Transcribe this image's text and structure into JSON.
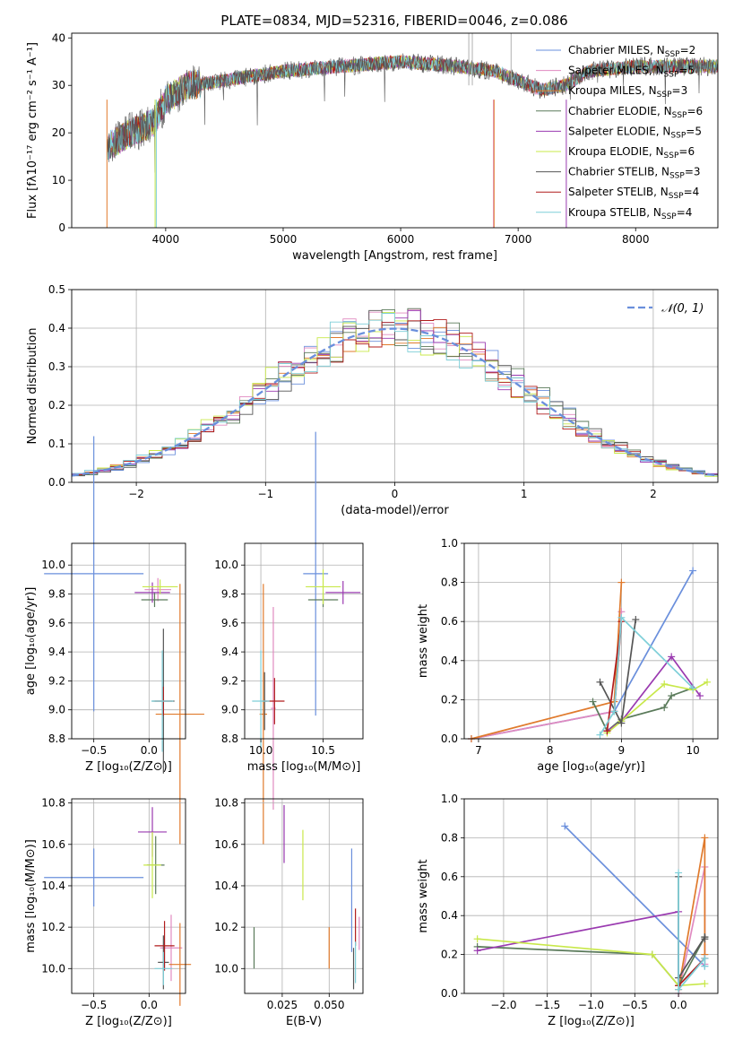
{
  "colors": {
    "series": [
      "#6a8fdc",
      "#e08ac0",
      "#e07a2c",
      "#5a7a5a",
      "#9a3ab0",
      "#c8e84a",
      "#555555",
      "#b01c1c",
      "#7ecfd8"
    ]
  },
  "chart_data": [
    {
      "type": "line",
      "title": "PLATE=0834, MJD=52316, FIBERID=0046, z=0.086",
      "xlabel": "wavelength [Angstrom, rest frame]",
      "ylabel": "Flux [fλ10⁻¹⁷ erg cm⁻² s⁻¹ A⁻¹]",
      "xlim": [
        3200,
        8700
      ],
      "ylim": [
        0,
        41
      ],
      "xticks": [
        4000,
        5000,
        6000,
        7000,
        8000
      ],
      "yticks": [
        0,
        10,
        20,
        30,
        40
      ],
      "grid": false,
      "legend_position": "top-right",
      "legend": [
        "Chabrier MILES, N_SSP=2",
        "Salpeter MILES, N_SSP=5",
        "Kroupa MILES, N_SSP=3",
        "Chabrier ELODIE, N_SSP=6",
        "Salpeter ELODIE, N_SSP=5",
        "Kroupa ELODIE, N_SSP=6",
        "Chabrier STELIB, N_SSP=3",
        "Salpeter STELIB, N_SSP=4",
        "Kroupa STELIB, N_SSP=4"
      ],
      "legend_display": [
        [
          "Chabrier MILES, N",
          "SSP",
          "=2"
        ],
        [
          "Salpeter MILES, N",
          "SSP",
          "=5"
        ],
        [
          "Kroupa MILES, N",
          "SSP",
          "=3"
        ],
        [
          "Chabrier ELODIE, N",
          "SSP",
          "=6"
        ],
        [
          "Salpeter ELODIE, N",
          "SSP",
          "=5"
        ],
        [
          "Kroupa ELODIE, N",
          "SSP",
          "=6"
        ],
        [
          "Chabrier STELIB, N",
          "SSP",
          "=3"
        ],
        [
          "Salpeter STELIB, N",
          "SSP",
          "=4"
        ],
        [
          "Kroupa STELIB, N",
          "SSP",
          "=4"
        ]
      ],
      "spectrum_envelope": {
        "x": [
          3500,
          3700,
          3900,
          4000,
          4200,
          4500,
          5000,
          5500,
          6000,
          6500,
          6800,
          7000,
          7200,
          7400,
          7600,
          8000,
          8400,
          8700
        ],
        "y": [
          17,
          20,
          22,
          27,
          30,
          31,
          33,
          34,
          35,
          34,
          33,
          31,
          29,
          30,
          33,
          34,
          34,
          34
        ]
      }
    },
    {
      "type": "step",
      "xlabel": "(data-model)/error",
      "ylabel": "Normed distribution",
      "xlim": [
        -2.5,
        2.5
      ],
      "ylim": [
        0,
        0.5
      ],
      "xticks": [
        -2,
        -1,
        0,
        1,
        2
      ],
      "yticks": [
        0.0,
        0.1,
        0.2,
        0.3,
        0.4,
        0.5
      ],
      "grid": true,
      "legend_position": "top-right",
      "reference_curve": {
        "name": "𝒩(0, 1)",
        "mean": 0,
        "sigma": 1
      }
    },
    {
      "type": "errorbar",
      "xlabel": "Z [log₁₀(Z/Z⊙)]",
      "ylabel": "age  [log₁₀(age/yr)]",
      "xlim": [
        -0.7,
        0.33
      ],
      "ylim": [
        8.8,
        10.15
      ],
      "xticks": [
        -0.5,
        0.0
      ],
      "yticks": [
        8.8,
        9.0,
        9.2,
        9.4,
        9.6,
        9.8,
        10.0
      ],
      "grid": true,
      "points": [
        {
          "x": -0.5,
          "y": 9.94,
          "xerr": 0.45,
          "yerr": 0.95
        },
        {
          "x": 0.08,
          "y": 9.83,
          "xerr": 0.12,
          "yerr": 0.08
        },
        {
          "x": 0.28,
          "y": 8.97,
          "xerr": 0.22,
          "yerr": 0.9
        },
        {
          "x": 0.05,
          "y": 9.76,
          "xerr": 0.12,
          "yerr": 0.05
        },
        {
          "x": 0.03,
          "y": 9.81,
          "xerr": 0.16,
          "yerr": 0.07
        },
        {
          "x": 0.1,
          "y": 9.85,
          "xerr": 0.16,
          "yerr": 0.05
        },
        {
          "x": 0.13,
          "y": 9.06,
          "xerr": 0.1,
          "yerr": 0.5
        },
        {
          "x": 0.13,
          "y": 9.06,
          "xerr": 0.08,
          "yerr": 0.1
        },
        {
          "x": 0.12,
          "y": 9.06,
          "xerr": 0.1,
          "yerr": 0.35
        }
      ]
    },
    {
      "type": "errorbar",
      "xlabel": "mass [log₁₀(M/M⊙)]",
      "ylabel": "",
      "xlim": [
        9.87,
        10.82
      ],
      "ylim": [
        8.8,
        10.15
      ],
      "xticks": [
        10.0,
        10.5
      ],
      "yticks": [
        8.8,
        9.0,
        9.2,
        9.4,
        9.6,
        9.8,
        10.0
      ],
      "grid": true,
      "points": [
        {
          "x": 10.44,
          "y": 9.94,
          "xerr": 0.1,
          "yerr": 0.98
        },
        {
          "x": 10.1,
          "y": 9.01,
          "xerr": 0.02,
          "yerr": 0.7
        },
        {
          "x": 10.02,
          "y": 8.97,
          "xerr": 0.03,
          "yerr": 0.9
        },
        {
          "x": 10.5,
          "y": 9.76,
          "xerr": 0.12,
          "yerr": 0.05
        },
        {
          "x": 10.66,
          "y": 9.81,
          "xerr": 0.14,
          "yerr": 0.08
        },
        {
          "x": 10.5,
          "y": 9.85,
          "xerr": 0.14,
          "yerr": 0.12
        },
        {
          "x": 10.03,
          "y": 9.06,
          "xerr": 0.02,
          "yerr": 0.2
        },
        {
          "x": 10.11,
          "y": 9.06,
          "xerr": 0.08,
          "yerr": 0.16
        },
        {
          "x": 10.0,
          "y": 9.06,
          "xerr": 0.07,
          "yerr": 0.35
        }
      ]
    },
    {
      "type": "line",
      "xlabel": "age  [log₁₀(age/yr)]",
      "ylabel": "mass weight",
      "xlim": [
        6.8,
        10.35
      ],
      "ylim": [
        0,
        1.0
      ],
      "xticks": [
        7,
        8,
        9,
        10
      ],
      "yticks": [
        0.0,
        0.2,
        0.4,
        0.6,
        0.8,
        1.0
      ],
      "grid": true,
      "series": [
        {
          "x": [
            6.9,
            8.9,
            10.0
          ],
          "y": [
            0.0,
            0.14,
            0.86
          ]
        },
        {
          "x": [
            6.9,
            8.9,
            9.0
          ],
          "y": [
            0.0,
            0.14,
            0.65
          ]
        },
        {
          "x": [
            6.9,
            8.9,
            9.0
          ],
          "y": [
            0.0,
            0.19,
            0.8
          ]
        },
        {
          "x": [
            8.6,
            8.8,
            9.0,
            9.6,
            9.7,
            10.0
          ],
          "y": [
            0.19,
            0.04,
            0.1,
            0.16,
            0.22,
            0.26
          ]
        },
        {
          "x": [
            8.8,
            9.0,
            9.7,
            10.1
          ],
          "y": [
            0.04,
            0.09,
            0.42,
            0.22
          ]
        },
        {
          "x": [
            8.8,
            9.0,
            9.6,
            10.0,
            10.2
          ],
          "y": [
            0.03,
            0.09,
            0.28,
            0.25,
            0.29
          ]
        },
        {
          "x": [
            8.7,
            9.0,
            9.2
          ],
          "y": [
            0.29,
            0.08,
            0.61
          ]
        },
        {
          "x": [
            8.8,
            9.0,
            8.9
          ],
          "y": [
            0.04,
            0.6,
            0.14
          ]
        },
        {
          "x": [
            8.7,
            8.9,
            9.0,
            10.0
          ],
          "y": [
            0.02,
            0.14,
            0.62,
            0.26
          ]
        }
      ]
    },
    {
      "type": "errorbar",
      "xlabel": "Z [log₁₀(Z/Z⊙)]",
      "ylabel": "mass [log₁₀(M/M⊙)]",
      "xlim": [
        -0.7,
        0.33
      ],
      "ylim": [
        9.88,
        10.82
      ],
      "xticks": [
        -0.5,
        0.0
      ],
      "yticks": [
        10.0,
        10.2,
        10.4,
        10.6,
        10.8
      ],
      "grid": true,
      "points": [
        {
          "x": -0.5,
          "y": 10.44,
          "xerr": 0.45,
          "yerr": 0.14
        },
        {
          "x": 0.2,
          "y": 10.1,
          "xerr": 0.1,
          "yerr": 0.16
        },
        {
          "x": 0.28,
          "y": 10.02,
          "xerr": 0.1,
          "yerr": 0.2
        },
        {
          "x": 0.06,
          "y": 10.5,
          "xerr": 0.08,
          "yerr": 0.14
        },
        {
          "x": 0.03,
          "y": 10.66,
          "xerr": 0.13,
          "yerr": 0.12
        },
        {
          "x": 0.03,
          "y": 10.5,
          "xerr": 0.08,
          "yerr": 0.16
        },
        {
          "x": 0.13,
          "y": 10.03,
          "xerr": 0.05,
          "yerr": 0.13
        },
        {
          "x": 0.14,
          "y": 10.11,
          "xerr": 0.09,
          "yerr": 0.12
        },
        {
          "x": 0.13,
          "y": 10.0,
          "xerr": 0.08,
          "yerr": 0.08
        }
      ]
    },
    {
      "type": "errorbar",
      "xlabel": "E(B-V)",
      "ylabel": "",
      "xlim": [
        0.005,
        0.068
      ],
      "ylim": [
        9.88,
        10.82
      ],
      "xticks": [
        0.025,
        0.05
      ],
      "xtick_labels": [
        "0.025",
        "0.050"
      ],
      "yticks": [
        10.0,
        10.2,
        10.4,
        10.6,
        10.8
      ],
      "grid": true,
      "points": [
        {
          "x": 0.062,
          "y": 10.33,
          "xerr": 0,
          "yerr": 0.25
        },
        {
          "x": 0.066,
          "y": 10.17,
          "xerr": 0,
          "yerr": 0.08
        },
        {
          "x": 0.05,
          "y": 10.1,
          "xerr": 0,
          "yerr": 0.1
        },
        {
          "x": 0.01,
          "y": 10.1,
          "xerr": 0,
          "yerr": 0.1
        },
        {
          "x": 0.026,
          "y": 10.65,
          "xerr": 0,
          "yerr": 0.14
        },
        {
          "x": 0.036,
          "y": 10.5,
          "xerr": 0,
          "yerr": 0.17
        },
        {
          "x": 0.063,
          "y": 10.0,
          "xerr": 0,
          "yerr": 0.1
        },
        {
          "x": 0.064,
          "y": 10.2,
          "xerr": 0,
          "yerr": 0.09
        },
        {
          "x": 0.064,
          "y": 10.03,
          "xerr": 0,
          "yerr": 0.1
        }
      ]
    },
    {
      "type": "line",
      "xlabel": "Z [log₁₀(Z/Z⊙)]",
      "ylabel": "mass weight",
      "xlim": [
        -2.45,
        0.45
      ],
      "ylim": [
        0,
        1.0
      ],
      "xticks": [
        -2.0,
        -1.5,
        -1.0,
        -0.5,
        0.0
      ],
      "yticks": [
        0.0,
        0.2,
        0.4,
        0.6,
        0.8,
        1.0
      ],
      "grid": true,
      "series": [
        {
          "x": [
            -1.3,
            0.3
          ],
          "y": [
            0.86,
            0.14
          ]
        },
        {
          "x": [
            0.0,
            0.3,
            0.3
          ],
          "y": [
            0.0,
            0.65,
            0.15
          ]
        },
        {
          "x": [
            0.0,
            0.3,
            0.3
          ],
          "y": [
            0.02,
            0.8,
            0.2
          ]
        },
        {
          "x": [
            -2.3,
            -0.3,
            0.0,
            0.3
          ],
          "y": [
            0.24,
            0.2,
            0.04,
            0.29
          ]
        },
        {
          "x": [
            -2.3,
            0.0,
            0.0
          ],
          "y": [
            0.22,
            0.42,
            0.04
          ]
        },
        {
          "x": [
            -2.3,
            -0.3,
            0.0,
            0.3
          ],
          "y": [
            0.28,
            0.2,
            0.04,
            0.05
          ]
        },
        {
          "x": [
            0.0,
            0.0,
            0.3,
            0.3
          ],
          "y": [
            0.6,
            0.08,
            0.29,
            0.28
          ]
        },
        {
          "x": [
            0.0,
            0.3
          ],
          "y": [
            0.04,
            0.18
          ]
        },
        {
          "x": [
            0.0,
            0.0,
            0.3,
            0.3
          ],
          "y": [
            0.62,
            0.02,
            0.18,
            0.14
          ]
        }
      ]
    }
  ]
}
